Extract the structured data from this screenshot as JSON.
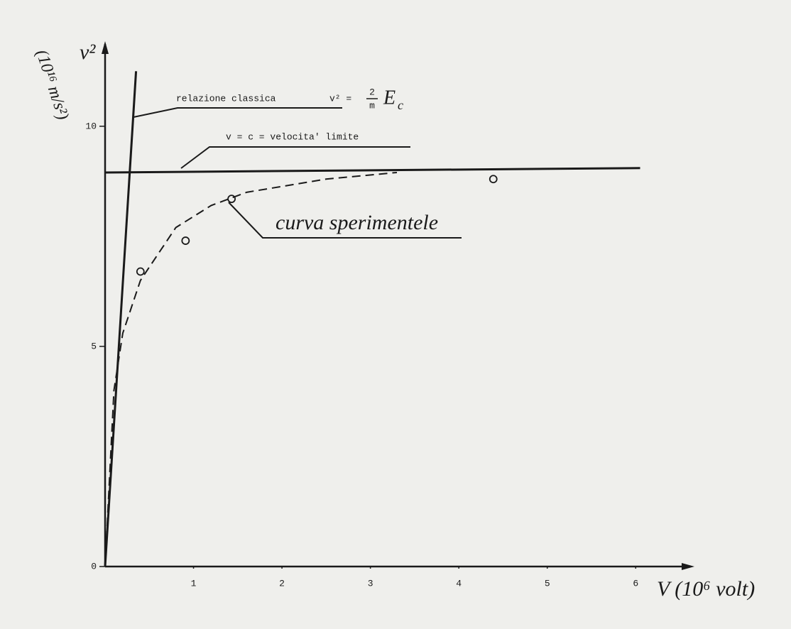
{
  "chart_data": {
    "type": "line",
    "ylabel": "v²",
    "yunit": "(10¹⁶ m/s²)",
    "xlabel": "V (10⁶ volt)",
    "xlim": [
      0,
      6.6
    ],
    "ylim": [
      0,
      11.9
    ],
    "xticks": [
      1,
      2,
      3,
      4,
      5,
      6
    ],
    "yticks": [
      0,
      5,
      10
    ],
    "series": [
      {
        "mode": "line",
        "color": "#1a1a1a",
        "x": [
          0,
          0.35
        ],
        "values": [
          0,
          11.25
        ]
      },
      {
        "mode": "line",
        "color": "#1a1a1a",
        "x": [
          0,
          6.05
        ],
        "values": [
          8.95,
          9.05
        ]
      },
      {
        "mode": "dashed",
        "color": "#1a1a1a",
        "x": [
          0,
          0.1,
          0.2,
          0.4,
          0.8,
          1.2,
          1.6,
          2.5,
          3.3
        ],
        "values": [
          0,
          4.0,
          5.3,
          6.5,
          7.7,
          8.2,
          8.5,
          8.8,
          8.95
        ]
      },
      {
        "mode": "markers",
        "color": "#1a1a1a",
        "x": [
          0.4,
          0.91,
          1.43,
          4.39
        ],
        "values": [
          6.7,
          7.4,
          8.35,
          8.8
        ]
      }
    ],
    "annotations": {
      "classical": "relazione classica",
      "formula_lhs": "v² =",
      "formula_num": "2",
      "formula_den": "m",
      "formula_var": "E",
      "formula_sub": "c",
      "limit": "v = c = velocita' limite",
      "experimental": "curva sperimentele"
    }
  }
}
